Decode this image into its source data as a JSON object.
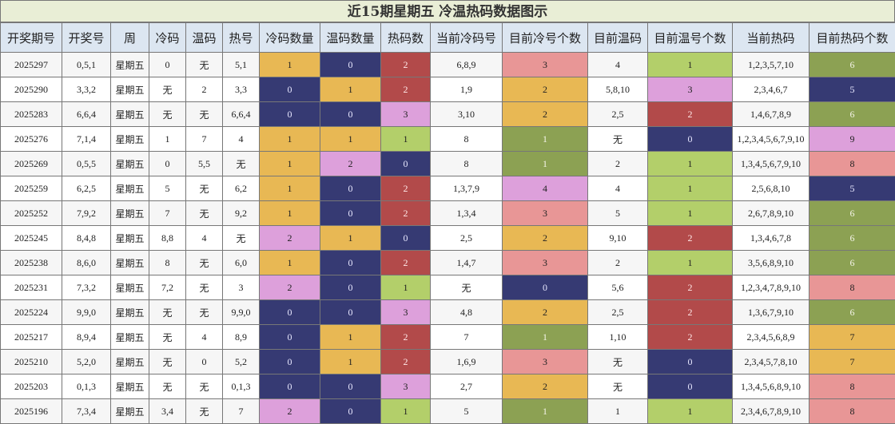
{
  "title": "近15期星期五 冷温热码数据图示",
  "palette": {
    "orange": "#e8b854",
    "navy": "#363a73",
    "red": "#b24a4a",
    "violet": "#dda0db",
    "lime": "#b3cf6a",
    "olive": "#8ca153",
    "pink": "#e89696"
  },
  "headers": [
    "开奖期号",
    "开奖号",
    "周",
    "冷码",
    "温码",
    "热号",
    "冷码数量",
    "温码数量",
    "热码数",
    "当前冷码号",
    "目前冷号个数",
    "目前温码",
    "目前温号个数",
    "当前热码",
    "目前热码个数"
  ],
  "rows": [
    {
      "cells": [
        "2025297",
        "0,5,1",
        "星期五",
        "0",
        "无",
        "5,1",
        "1",
        "0",
        "2",
        "6,8,9",
        "3",
        "4",
        "1",
        "1,2,3,5,7,10",
        "6"
      ],
      "colors": [
        "",
        "",
        "",
        "",
        "",
        "",
        "orange",
        "navy",
        "red",
        "",
        "pink",
        "",
        "lime",
        "",
        "olive"
      ]
    },
    {
      "cells": [
        "2025290",
        "3,3,2",
        "星期五",
        "无",
        "2",
        "3,3",
        "0",
        "1",
        "2",
        "1,9",
        "2",
        "5,8,10",
        "3",
        "2,3,4,6,7",
        "5"
      ],
      "colors": [
        "",
        "",
        "",
        "",
        "",
        "",
        "navy",
        "orange",
        "red",
        "",
        "orange",
        "",
        "violet",
        "",
        "navy"
      ]
    },
    {
      "cells": [
        "2025283",
        "6,6,4",
        "星期五",
        "无",
        "无",
        "6,6,4",
        "0",
        "0",
        "3",
        "3,10",
        "2",
        "2,5",
        "2",
        "1,4,6,7,8,9",
        "6"
      ],
      "colors": [
        "",
        "",
        "",
        "",
        "",
        "",
        "navy",
        "navy",
        "violet",
        "",
        "orange",
        "",
        "red",
        "",
        "olive"
      ]
    },
    {
      "cells": [
        "2025276",
        "7,1,4",
        "星期五",
        "1",
        "7",
        "4",
        "1",
        "1",
        "1",
        "8",
        "1",
        "无",
        "0",
        "1,2,3,4,5,6,7,9,10",
        "9"
      ],
      "colors": [
        "",
        "",
        "",
        "",
        "",
        "",
        "orange",
        "orange",
        "lime",
        "",
        "olive",
        "",
        "navy",
        "",
        "violet"
      ]
    },
    {
      "cells": [
        "2025269",
        "0,5,5",
        "星期五",
        "0",
        "5,5",
        "无",
        "1",
        "2",
        "0",
        "8",
        "1",
        "2",
        "1",
        "1,3,4,5,6,7,9,10",
        "8"
      ],
      "colors": [
        "",
        "",
        "",
        "",
        "",
        "",
        "orange",
        "violet",
        "navy",
        "",
        "olive",
        "",
        "lime",
        "",
        "pink"
      ]
    },
    {
      "cells": [
        "2025259",
        "6,2,5",
        "星期五",
        "5",
        "无",
        "6,2",
        "1",
        "0",
        "2",
        "1,3,7,9",
        "4",
        "4",
        "1",
        "2,5,6,8,10",
        "5"
      ],
      "colors": [
        "",
        "",
        "",
        "",
        "",
        "",
        "orange",
        "navy",
        "red",
        "",
        "violet",
        "",
        "lime",
        "",
        "navy"
      ]
    },
    {
      "cells": [
        "2025252",
        "7,9,2",
        "星期五",
        "7",
        "无",
        "9,2",
        "1",
        "0",
        "2",
        "1,3,4",
        "3",
        "5",
        "1",
        "2,6,7,8,9,10",
        "6"
      ],
      "colors": [
        "",
        "",
        "",
        "",
        "",
        "",
        "orange",
        "navy",
        "red",
        "",
        "pink",
        "",
        "lime",
        "",
        "olive"
      ]
    },
    {
      "cells": [
        "2025245",
        "8,4,8",
        "星期五",
        "8,8",
        "4",
        "无",
        "2",
        "1",
        "0",
        "2,5",
        "2",
        "9,10",
        "2",
        "1,3,4,6,7,8",
        "6"
      ],
      "colors": [
        "",
        "",
        "",
        "",
        "",
        "",
        "violet",
        "orange",
        "navy",
        "",
        "orange",
        "",
        "red",
        "",
        "olive"
      ]
    },
    {
      "cells": [
        "2025238",
        "8,6,0",
        "星期五",
        "8",
        "无",
        "6,0",
        "1",
        "0",
        "2",
        "1,4,7",
        "3",
        "2",
        "1",
        "3,5,6,8,9,10",
        "6"
      ],
      "colors": [
        "",
        "",
        "",
        "",
        "",
        "",
        "orange",
        "navy",
        "red",
        "",
        "pink",
        "",
        "lime",
        "",
        "olive"
      ]
    },
    {
      "cells": [
        "2025231",
        "7,3,2",
        "星期五",
        "7,2",
        "无",
        "3",
        "2",
        "0",
        "1",
        "无",
        "0",
        "5,6",
        "2",
        "1,2,3,4,7,8,9,10",
        "8"
      ],
      "colors": [
        "",
        "",
        "",
        "",
        "",
        "",
        "violet",
        "navy",
        "lime",
        "",
        "navy",
        "",
        "red",
        "",
        "pink"
      ]
    },
    {
      "cells": [
        "2025224",
        "9,9,0",
        "星期五",
        "无",
        "无",
        "9,9,0",
        "0",
        "0",
        "3",
        "4,8",
        "2",
        "2,5",
        "2",
        "1,3,6,7,9,10",
        "6"
      ],
      "colors": [
        "",
        "",
        "",
        "",
        "",
        "",
        "navy",
        "navy",
        "violet",
        "",
        "orange",
        "",
        "red",
        "",
        "olive"
      ]
    },
    {
      "cells": [
        "2025217",
        "8,9,4",
        "星期五",
        "无",
        "4",
        "8,9",
        "0",
        "1",
        "2",
        "7",
        "1",
        "1,10",
        "2",
        "2,3,4,5,6,8,9",
        "7"
      ],
      "colors": [
        "",
        "",
        "",
        "",
        "",
        "",
        "navy",
        "orange",
        "red",
        "",
        "olive",
        "",
        "red",
        "",
        "orange"
      ]
    },
    {
      "cells": [
        "2025210",
        "5,2,0",
        "星期五",
        "无",
        "0",
        "5,2",
        "0",
        "1",
        "2",
        "1,6,9",
        "3",
        "无",
        "0",
        "2,3,4,5,7,8,10",
        "7"
      ],
      "colors": [
        "",
        "",
        "",
        "",
        "",
        "",
        "navy",
        "orange",
        "red",
        "",
        "pink",
        "",
        "navy",
        "",
        "orange"
      ]
    },
    {
      "cells": [
        "2025203",
        "0,1,3",
        "星期五",
        "无",
        "无",
        "0,1,3",
        "0",
        "0",
        "3",
        "2,7",
        "2",
        "无",
        "0",
        "1,3,4,5,6,8,9,10",
        "8"
      ],
      "colors": [
        "",
        "",
        "",
        "",
        "",
        "",
        "navy",
        "navy",
        "violet",
        "",
        "orange",
        "",
        "navy",
        "",
        "pink"
      ]
    },
    {
      "cells": [
        "2025196",
        "7,3,4",
        "星期五",
        "3,4",
        "无",
        "7",
        "2",
        "0",
        "1",
        "5",
        "1",
        "1",
        "1",
        "2,3,4,6,7,8,9,10",
        "8"
      ],
      "colors": [
        "",
        "",
        "",
        "",
        "",
        "",
        "violet",
        "navy",
        "lime",
        "",
        "olive",
        "",
        "lime",
        "",
        "pink"
      ]
    }
  ]
}
